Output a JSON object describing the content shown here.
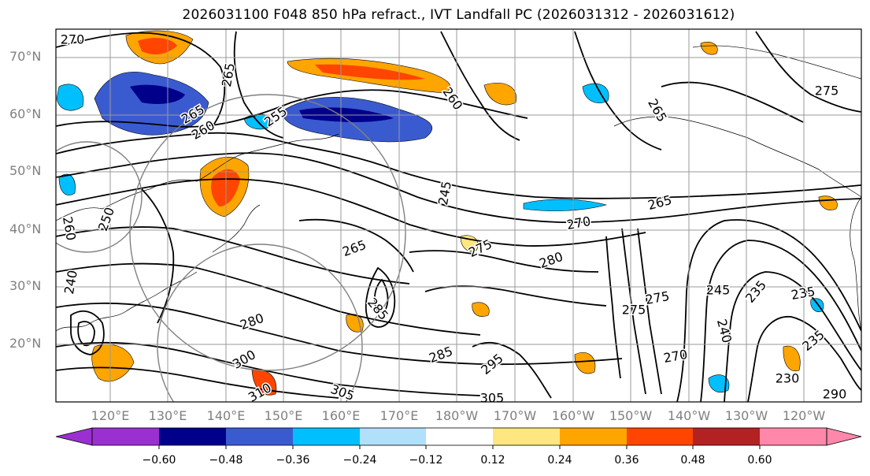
{
  "title": "2026031100 F048 850 hPa refract., IVT Landfall PC (2026031312 - 2026031612)",
  "map": {
    "lat_labels": [
      "70°N",
      "60°N",
      "50°N",
      "40°N",
      "30°N",
      "20°N"
    ],
    "lon_labels": [
      "120°E",
      "130°E",
      "140°E",
      "150°E",
      "160°E",
      "170°E",
      "180°W",
      "170°W",
      "160°W",
      "150°W",
      "140°W",
      "130°W",
      "120°W"
    ],
    "contour_labels": [
      "270",
      "265",
      "265",
      "260",
      "255",
      "260",
      "275",
      "265",
      "245",
      "265",
      "270",
      "265",
      "275",
      "280",
      "275",
      "245",
      "235",
      "235",
      "280",
      "285",
      "285",
      "295",
      "305",
      "305",
      "300",
      "310",
      "250",
      "260",
      "240",
      "235",
      "240",
      "270",
      "275",
      "230",
      "290"
    ]
  },
  "colorbar": {
    "tick_labels": [
      "−0.60",
      "−0.48",
      "−0.36",
      "−0.24",
      "−0.12",
      "0.12",
      "0.24",
      "0.36",
      "0.48",
      "0.60"
    ],
    "colors": {
      "under": "#9b30d0",
      "b1": "#9b30d0",
      "b2": "#00008b",
      "b3": "#3a5bd0",
      "b4": "#00bfff",
      "b5": "#b0e0fa",
      "b6": "#ffffff",
      "b7": "#ffe680",
      "b8": "#ffa500",
      "b9": "#ff4500",
      "b10": "#b22222",
      "b11": "#ff88aa",
      "over": "#ff88aa"
    }
  }
}
